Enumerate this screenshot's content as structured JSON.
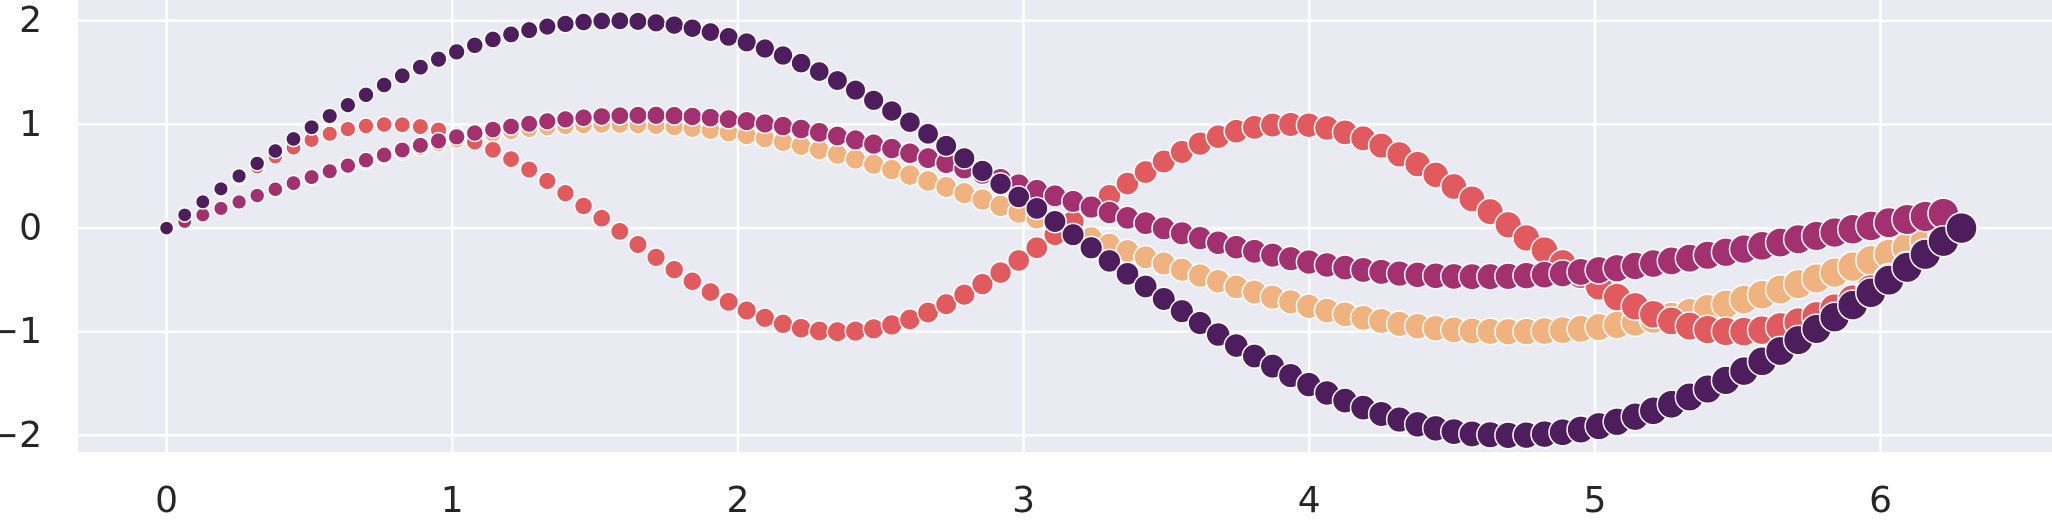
{
  "chart_data": {
    "type": "scatter",
    "title": "",
    "xlabel": "",
    "ylabel": "",
    "xlim": [
      -0.31,
      6.6
    ],
    "ylim": [
      -2.16,
      2.2
    ],
    "xticks": [
      0,
      1,
      2,
      3,
      4,
      5,
      6
    ],
    "yticks": [
      -2,
      -1,
      0,
      1,
      2
    ],
    "x_tick_labels": [
      "0",
      "1",
      "2",
      "3",
      "4",
      "5",
      "6"
    ],
    "y_tick_labels": [
      "−2",
      "−1",
      "0",
      "1",
      "2"
    ],
    "grid": true,
    "background": "#eaeaf2",
    "grid_color": "#ffffff",
    "point_edge_color": "#ffffff",
    "point_size_trend": "marker size grows with x",
    "x": [
      0.0,
      0.0635,
      0.1269,
      0.1904,
      0.2539,
      0.3173,
      0.3808,
      0.4443,
      0.5077,
      0.5712,
      0.6347,
      0.6981,
      0.7616,
      0.8251,
      0.8885,
      0.952,
      1.0155,
      1.0789,
      1.1424,
      1.2059,
      1.2693,
      1.3328,
      1.3963,
      1.4597,
      1.5232,
      1.5867,
      1.6501,
      1.7136,
      1.7771,
      1.8405,
      1.904,
      1.9675,
      2.0309,
      2.0944,
      2.1579,
      2.2213,
      2.2848,
      2.3483,
      2.4117,
      2.4752,
      2.5387,
      2.6021,
      2.6656,
      2.7291,
      2.7925,
      2.856,
      2.9195,
      2.9829,
      3.0464,
      3.1099,
      3.1733,
      3.2368,
      3.3003,
      3.3637,
      3.4272,
      3.4907,
      3.5541,
      3.6176,
      3.6811,
      3.7445,
      3.808,
      3.8715,
      3.9349,
      3.9984,
      4.0619,
      4.1253,
      4.1888,
      4.2523,
      4.3157,
      4.3792,
      4.4427,
      4.5061,
      4.5696,
      4.6331,
      4.6965,
      4.76,
      4.8235,
      4.8869,
      4.9504,
      5.0139,
      5.0773,
      5.1408,
      5.2043,
      5.2677,
      5.3312,
      5.3947,
      5.4581,
      5.5216,
      5.5851,
      5.6485,
      5.712,
      5.7755,
      5.8389,
      5.9024,
      5.9659,
      6.0293,
      6.0928,
      6.1563,
      6.2197,
      6.2832
    ],
    "series": [
      {
        "color": "#f0b27f",
        "values": [
          0.0,
          0.0634,
          0.1266,
          0.1893,
          0.2511,
          0.312,
          0.3717,
          0.4298,
          0.4862,
          0.5406,
          0.5929,
          0.6428,
          0.69,
          0.7345,
          0.7761,
          0.8146,
          0.8497,
          0.8815,
          0.9096,
          0.9341,
          0.9549,
          0.9718,
          0.9848,
          0.9938,
          0.9989,
          0.9999,
          0.997,
          0.9898,
          0.9788,
          0.9638,
          0.945,
          0.9222,
          0.8957,
          0.866,
          0.8323,
          0.7953,
          0.7548,
          0.7117,
          0.6653,
          0.6162,
          0.5645,
          0.5105,
          0.4546,
          0.3967,
          0.3369,
          0.2756,
          0.2135,
          0.1502,
          0.0951,
          0.0317,
          -0.0317,
          -0.0951,
          -0.1582,
          -0.2206,
          -0.2817,
          -0.342,
          -0.4009,
          -0.4581,
          -0.5133,
          -0.5666,
          -0.6171,
          -0.6657,
          -0.7116,
          -0.7549,
          -0.7952,
          -0.8322,
          -0.866,
          -0.8965,
          -0.9234,
          -0.9466,
          -0.9661,
          -0.9818,
          -0.9927,
          -0.9968,
          -0.9999,
          -0.9988,
          -0.9937,
          -0.9847,
          -0.9719,
          -0.9551,
          -0.9343,
          -0.9096,
          -0.8814,
          -0.8496,
          -0.8145,
          -0.7761,
          -0.7345,
          -0.6899,
          -0.6427,
          -0.5928,
          -0.5406,
          -0.4863,
          -0.4298,
          -0.3716,
          -0.312,
          -0.2511,
          -0.1893,
          -0.1266,
          -0.0634,
          0.0
        ]
      },
      {
        "color": "#e05a5e",
        "values": [
          0.0,
          0.1266,
          0.2511,
          0.3717,
          0.4862,
          0.5929,
          0.69,
          0.7761,
          0.8497,
          0.9096,
          0.9549,
          0.9848,
          0.9989,
          0.997,
          0.9788,
          0.945,
          0.8957,
          0.8323,
          0.7548,
          0.6653,
          0.5645,
          0.4546,
          0.3369,
          0.2135,
          0.0951,
          -0.0317,
          -0.1582,
          -0.2817,
          -0.4009,
          -0.5133,
          -0.6171,
          -0.7116,
          -0.7952,
          -0.866,
          -0.9234,
          -0.9661,
          -0.9927,
          -0.9999,
          -0.9937,
          -0.9719,
          -0.9343,
          -0.8814,
          -0.8145,
          -0.7345,
          -0.6427,
          -0.5406,
          -0.4298,
          -0.312,
          -0.1893,
          -0.0634,
          0.0634,
          0.1893,
          0.312,
          0.4298,
          0.5406,
          0.6427,
          0.7345,
          0.8145,
          0.8814,
          0.9343,
          0.9719,
          0.9937,
          0.9999,
          0.9927,
          0.9661,
          0.9234,
          0.866,
          0.7952,
          0.7116,
          0.6171,
          0.5133,
          0.4009,
          0.2817,
          0.1582,
          0.0317,
          -0.0951,
          -0.2135,
          -0.3369,
          -0.4546,
          -0.5645,
          -0.6653,
          -0.7548,
          -0.8323,
          -0.8957,
          -0.945,
          -0.9788,
          -0.997,
          -0.9989,
          -0.9848,
          -0.9549,
          -0.9096,
          -0.8497,
          -0.7761,
          -0.69,
          -0.5929,
          -0.4862,
          -0.3717,
          -0.2511,
          -0.1266,
          0.0
        ]
      },
      {
        "color": "#a3306f",
        "values": [
          0.0,
          0.0635,
          0.1268,
          0.1898,
          0.2522,
          0.3138,
          0.3744,
          0.4338,
          0.4917,
          0.548,
          0.6025,
          0.6549,
          0.7052,
          0.753,
          0.7982,
          0.8407,
          0.8803,
          0.9168,
          0.9501,
          0.98,
          1.0065,
          1.0294,
          1.0486,
          1.0641,
          1.0758,
          1.0836,
          1.0876,
          1.0877,
          1.084,
          1.0765,
          1.0652,
          1.0502,
          1.0316,
          1.0094,
          0.9838,
          0.955,
          0.923,
          0.888,
          0.8502,
          0.8098,
          0.767,
          0.722,
          0.675,
          0.6262,
          0.576,
          0.5245,
          0.472,
          0.4188,
          0.3651,
          0.3112,
          0.2574,
          0.2038,
          0.1508,
          0.0986,
          0.0474,
          -0.0025,
          -0.0508,
          -0.0973,
          -0.1418,
          -0.1841,
          -0.224,
          -0.2613,
          -0.2958,
          -0.3274,
          -0.356,
          -0.3815,
          -0.4038,
          -0.4229,
          -0.4387,
          -0.4512,
          -0.4605,
          -0.4665,
          -0.4693,
          -0.4689,
          -0.4655,
          -0.4591,
          -0.4498,
          -0.4378,
          -0.4232,
          -0.4062,
          -0.3869,
          -0.3655,
          -0.3421,
          -0.317,
          -0.2903,
          -0.2622,
          -0.2329,
          -0.2026,
          -0.1715,
          -0.1398,
          -0.1077,
          -0.0754,
          -0.0431,
          -0.011,
          0.0207,
          0.0518,
          0.0822,
          0.1117,
          0.1401,
          0.0
        ]
      },
      {
        "color": "#4e1d5e",
        "values": [
          0.0,
          0.1269,
          0.2532,
          0.3786,
          0.5023,
          0.624,
          0.7434,
          0.8596,
          0.9724,
          1.0812,
          1.1858,
          1.2856,
          1.38,
          1.469,
          1.5522,
          1.6292,
          1.6994,
          1.763,
          1.8192,
          1.8682,
          1.9098,
          1.9436,
          1.9696,
          1.9876,
          1.9978,
          1.9998,
          1.994,
          1.9796,
          1.9576,
          1.9276,
          1.89,
          1.8444,
          1.7914,
          1.732,
          1.6646,
          1.5906,
          1.5096,
          1.4234,
          1.3306,
          1.2324,
          1.129,
          1.021,
          0.9092,
          0.7934,
          0.6738,
          0.5512,
          0.427,
          0.3004,
          0.1902,
          0.0634,
          -0.0634,
          -0.1902,
          -0.3164,
          -0.4412,
          -0.5634,
          -0.684,
          -0.8018,
          -0.9162,
          -1.0266,
          -1.1332,
          -1.2342,
          -1.3314,
          -1.4232,
          -1.5098,
          -1.5904,
          -1.6644,
          -1.732,
          -1.793,
          -1.8468,
          -1.8932,
          -1.9322,
          -1.9636,
          -1.9854,
          -1.9936,
          -1.9998,
          -1.9976,
          -1.9874,
          -1.9694,
          -1.9438,
          -1.9102,
          -1.8686,
          -1.8192,
          -1.7628,
          -1.6992,
          -1.629,
          -1.5522,
          -1.469,
          -1.3798,
          -1.2854,
          -1.1856,
          -1.0812,
          -0.9726,
          -0.8596,
          -0.7432,
          -0.624,
          -0.5022,
          -0.3786,
          -0.2532,
          -0.1268,
          0.0
        ]
      }
    ]
  }
}
